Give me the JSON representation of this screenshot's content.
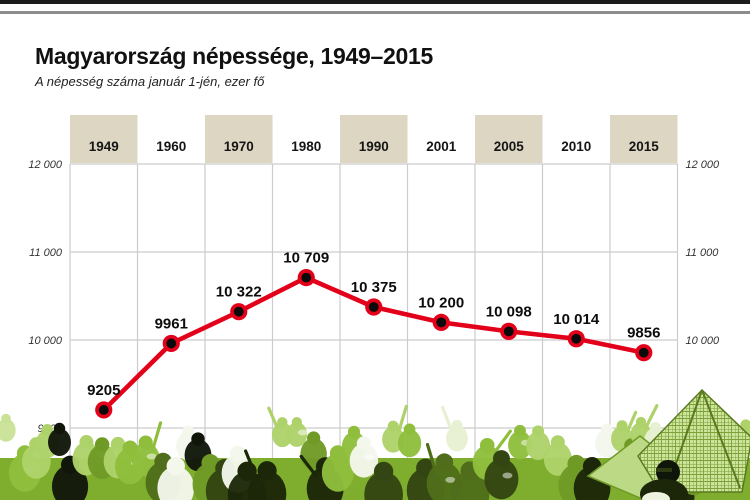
{
  "page": {
    "title": "Magyarország népessége, 1949–2015",
    "subtitle": "A népesség száma január 1-jén, ezer fő"
  },
  "chart_data": {
    "type": "line",
    "title": "Magyarország népessége, 1949–2015",
    "subtitle": "A népesség száma január 1-jén, ezer fő",
    "categories": [
      "1949",
      "1960",
      "1970",
      "1980",
      "1990",
      "2001",
      "2005",
      "2010",
      "2015"
    ],
    "values": [
      9205,
      9961,
      10322,
      10709,
      10375,
      10200,
      10098,
      10014,
      9856
    ],
    "value_labels": [
      "9205",
      "9961",
      "10 322",
      "10 709",
      "10 375",
      "10 200",
      "10 098",
      "10 014",
      "9856"
    ],
    "unit": "ezer fő",
    "ylim": [
      9000,
      12000
    ],
    "y_tick_values": [
      12000,
      11000,
      10000,
      9000
    ],
    "y_tick_labels_left": [
      "12 000",
      "11 000",
      "10 000",
      "9000"
    ],
    "y_tick_labels_right": [
      "12 000",
      "11 000",
      "10 000"
    ],
    "grid": true,
    "legend": "none"
  },
  "colors": {
    "line_red": "#e2001a",
    "marker_black": "#0a0a0a",
    "year_band_beige": "#dcd6c3",
    "grid_gray": "#cccccc",
    "tick_text": "#333333",
    "title_text": "#111111",
    "crowd_green": "#86b234"
  }
}
